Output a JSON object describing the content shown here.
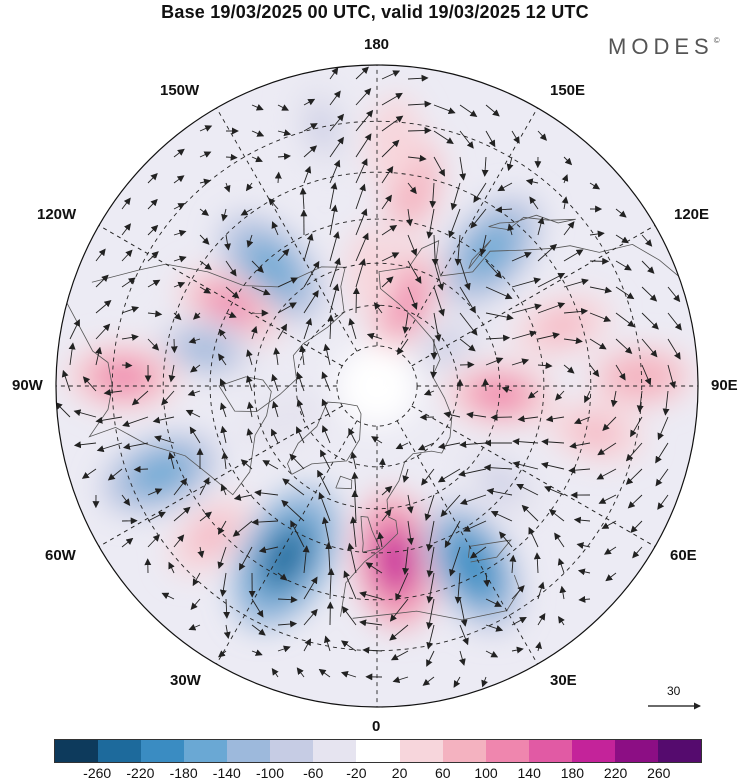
{
  "title": "Base 19/03/2025 00 UTC, valid 19/03/2025 12 UTC",
  "brand": "MODES",
  "brand_mark": "©",
  "longitude_labels": {
    "top": "180",
    "bottom": "0",
    "left": "90W",
    "right": "90E",
    "upper_left_1": "150W",
    "upper_left_2": "120W",
    "upper_right_1": "150E",
    "upper_right_2": "120E",
    "lower_left_1": "60W",
    "lower_left_2": "30W",
    "lower_right_1": "60E",
    "lower_right_2": "30E"
  },
  "reference_vector": {
    "value": "30"
  },
  "colorbar": {
    "colors": [
      "#0d3a5c",
      "#1d6a9c",
      "#3a8cc2",
      "#6aa8d4",
      "#9db9dc",
      "#c6cce4",
      "#e6e4f0",
      "#ffffff",
      "#f7d6dc",
      "#f4b2c0",
      "#ef86ae",
      "#e15aa4",
      "#c4239a",
      "#8c0e84",
      "#550b6e"
    ],
    "ticks": [
      "-260",
      "-220",
      "-180",
      "-140",
      "-100",
      "-60",
      "-20",
      "20",
      "60",
      "100",
      "140",
      "180",
      "220",
      "260"
    ]
  },
  "anomalies": [
    {
      "lat": 52,
      "lon": -138,
      "val": -170
    },
    {
      "lat": 50,
      "lon": -118,
      "val": 110
    },
    {
      "lat": 48,
      "lon": -102,
      "val": -110
    },
    {
      "lat": 32,
      "lon": -92,
      "val": 120
    },
    {
      "lat": 36,
      "lon": -68,
      "val": -150
    },
    {
      "lat": 38,
      "lon": -48,
      "val": 70
    },
    {
      "lat": 44,
      "lon": -28,
      "val": -230
    },
    {
      "lat": 48,
      "lon": 6,
      "val": 190
    },
    {
      "lat": 42,
      "lon": 28,
      "val": -200
    },
    {
      "lat": 52,
      "lon": 52,
      "val": -60
    },
    {
      "lat": 60,
      "lon": 86,
      "val": 110
    },
    {
      "lat": 38,
      "lon": 78,
      "val": 70
    },
    {
      "lat": 30,
      "lon": 92,
      "val": 90
    },
    {
      "lat": 44,
      "lon": 108,
      "val": 80
    },
    {
      "lat": 48,
      "lon": 140,
      "val": -170
    },
    {
      "lat": 68,
      "lon": 162,
      "val": 130
    },
    {
      "lat": 42,
      "lon": 170,
      "val": 90
    },
    {
      "lat": 30,
      "lon": -168,
      "val": -60
    },
    {
      "lat": 34,
      "lon": 176,
      "val": 60
    },
    {
      "lat": 62,
      "lon": -178,
      "val": 50
    },
    {
      "lat": 70,
      "lon": 120,
      "val": -60
    },
    {
      "lat": 66,
      "lon": -70,
      "val": -50
    }
  ]
}
